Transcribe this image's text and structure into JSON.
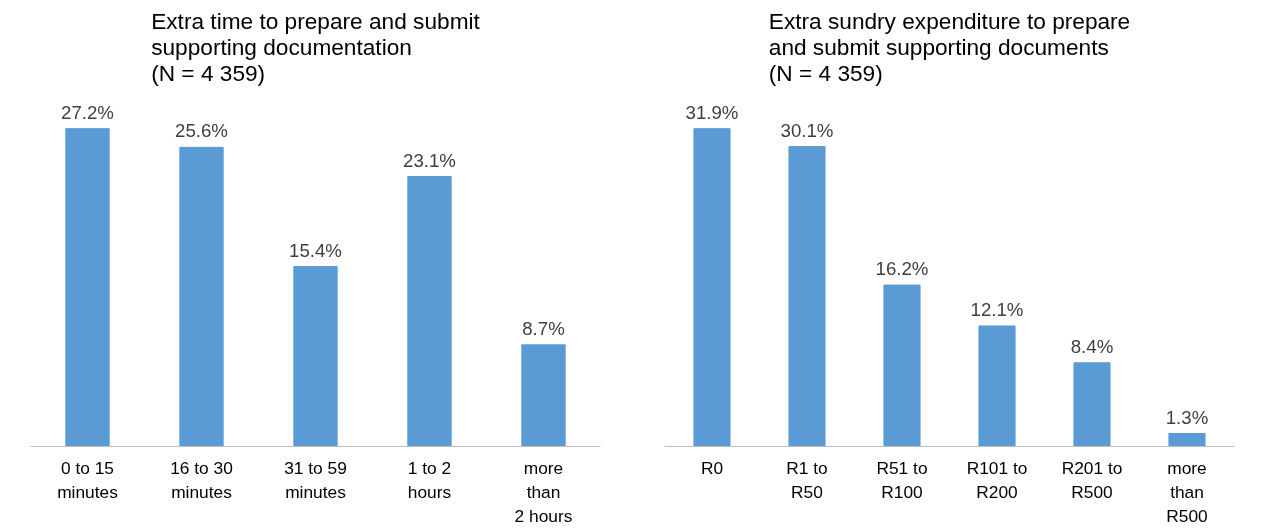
{
  "chart_data": [
    {
      "type": "bar",
      "title": "Extra time to prepare and submit\nsupporting documentation\n(N = 4 359)",
      "categories": [
        "0 to 15\nminutes",
        "16 to 30\nminutes",
        "31 to 59\nminutes",
        "1 to 2\nhours",
        "more\nthan\n2 hours"
      ],
      "values": [
        27.2,
        25.6,
        15.4,
        23.1,
        8.7
      ],
      "value_labels": [
        "27.2%",
        "25.6%",
        "15.4%",
        "23.1%",
        "8.7%"
      ],
      "color": "#5b9bd5"
    },
    {
      "type": "bar",
      "title": "Extra sundry expenditure to prepare\nand submit supporting documents\n(N = 4 359)",
      "categories": [
        "R0",
        "R1 to\nR50",
        "R51 to\nR100",
        "R101 to\nR200",
        "R201 to\nR500",
        "more\nthan\nR500"
      ],
      "values": [
        31.9,
        30.1,
        16.2,
        12.1,
        8.4,
        1.3
      ],
      "value_labels": [
        "31.9%",
        "30.1%",
        "16.2%",
        "12.1%",
        "8.4%",
        "1.3%"
      ],
      "color": "#5b9bd5"
    }
  ]
}
